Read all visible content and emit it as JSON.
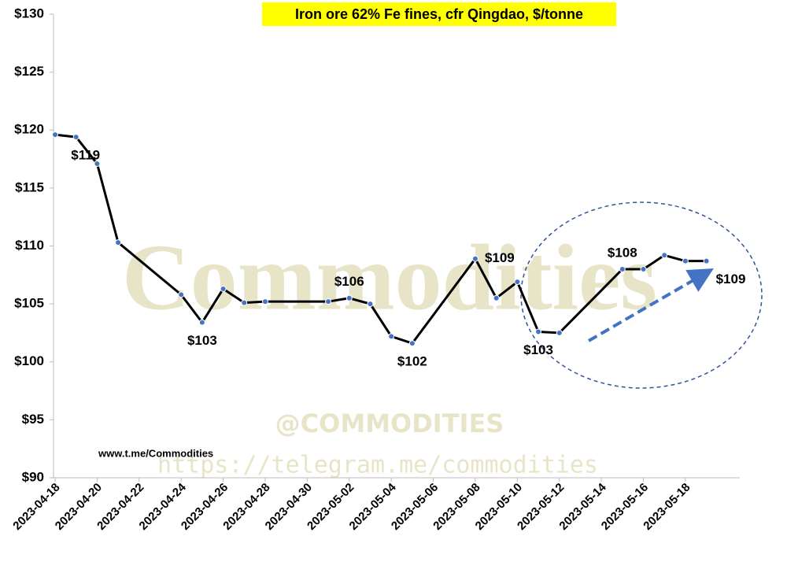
{
  "chart_data": {
    "type": "line",
    "title": "Iron ore 62% Fe fines, cfr Qingdao, $/tonne",
    "source": "www.t.me/Commodities",
    "watermarks": [
      "Commodities",
      "@COMMODITIES",
      "https://telegram.me/commodities"
    ],
    "x": [
      "2023-04-18",
      "2023-04-19",
      "2023-04-20",
      "2023-04-21",
      "2023-04-24",
      "2023-04-25",
      "2023-04-26",
      "2023-04-27",
      "2023-04-28",
      "2023-05-01",
      "2023-05-02",
      "2023-05-03",
      "2023-05-04",
      "2023-05-05",
      "2023-05-08",
      "2023-05-09",
      "2023-05-10",
      "2023-05-11",
      "2023-05-12",
      "2023-05-15",
      "2023-05-16",
      "2023-05-17",
      "2023-05-18",
      "2023-05-19"
    ],
    "series": [
      {
        "name": "Iron ore 62% Fe fines",
        "color": "#000000",
        "marker_color": "#4472c4",
        "values": [
          119.6,
          119.4,
          117.1,
          110.3,
          105.8,
          103.4,
          106.3,
          105.1,
          105.2,
          105.2,
          105.5,
          105.0,
          102.2,
          101.6,
          108.9,
          105.5,
          106.9,
          102.6,
          102.5,
          108.0,
          108.0,
          109.2,
          108.7,
          108.7
        ],
        "value_labels": [
          null,
          "$119",
          null,
          null,
          null,
          "$103",
          null,
          null,
          null,
          null,
          "$106",
          null,
          null,
          "$102",
          "$109",
          null,
          null,
          "$103",
          null,
          "$108",
          null,
          null,
          null,
          "$109"
        ]
      }
    ],
    "xlim": [
      "2023-04-18",
      "2023-05-21"
    ],
    "xticks": [
      "2023-04-18",
      "2023-04-20",
      "2023-04-22",
      "2023-04-24",
      "2023-04-26",
      "2023-04-28",
      "2023-04-30",
      "2023-05-02",
      "2023-05-04",
      "2023-05-06",
      "2023-05-08",
      "2023-05-10",
      "2023-05-12",
      "2023-05-14",
      "2023-05-16",
      "2023-05-18"
    ],
    "ylim": [
      90,
      130
    ],
    "yticks": [
      {
        "value": 90,
        "label": "$90"
      },
      {
        "value": 95,
        "label": "$95"
      },
      {
        "value": 100,
        "label": "$100"
      },
      {
        "value": 105,
        "label": "$105"
      },
      {
        "value": 110,
        "label": "$110"
      },
      {
        "value": 115,
        "label": "$115"
      },
      {
        "value": 120,
        "label": "$120"
      },
      {
        "value": 125,
        "label": "$125"
      },
      {
        "value": 130,
        "label": "$130"
      }
    ],
    "grid": false
  }
}
